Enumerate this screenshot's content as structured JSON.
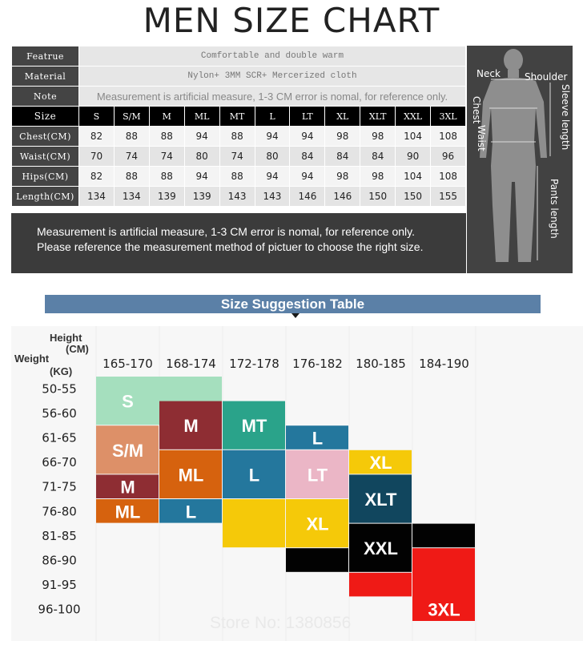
{
  "title": "MEN SIZE CHART",
  "size_table": {
    "feature_label": "Featrue",
    "feature_value": "Comfortable and double warm",
    "material_label": "Material",
    "material_value": "Nylon+ 3MM SCR+ Mercerized cloth",
    "note_label": "Note",
    "note_value": "Measurement is artificial measure, 1-3 CM error is nomal, for reference only.",
    "size_label": "Size",
    "sizes": [
      "S",
      "S/M",
      "M",
      "ML",
      "MT",
      "L",
      "LT",
      "XL",
      "XLT",
      "XXL",
      "3XL"
    ],
    "rows": [
      {
        "label": "Chest(CM)",
        "values": [
          "82",
          "88",
          "88",
          "94",
          "88",
          "94",
          "94",
          "98",
          "98",
          "104",
          "108"
        ]
      },
      {
        "label": "Waist(CM)",
        "values": [
          "70",
          "74",
          "74",
          "80",
          "74",
          "80",
          "84",
          "84",
          "84",
          "90",
          "96"
        ]
      },
      {
        "label": "Hips(CM)",
        "values": [
          "82",
          "88",
          "88",
          "94",
          "88",
          "94",
          "94",
          "98",
          "98",
          "104",
          "108"
        ]
      },
      {
        "label": "Length(CM)",
        "values": [
          "134",
          "134",
          "139",
          "139",
          "143",
          "143",
          "146",
          "146",
          "150",
          "150",
          "155"
        ]
      }
    ]
  },
  "note_box": {
    "line1": "Measurement is artificial measure, 1-3 CM error is nomal, for reference only.",
    "line2": "Please reference the measurement method of pictuer to choose the right size."
  },
  "figure_labels": {
    "neck": "Neck",
    "shoulder": "Shoulder",
    "chest": "Chest",
    "waist": "Waist",
    "sleeve": "Sleeve length",
    "pants": "Pants length"
  },
  "banner": "Size Suggestion Table",
  "watermark": "Store No: 1380856",
  "chart_data": {
    "type": "heatmap",
    "title": "Size Suggestion Table",
    "xlabel": "Height (CM)",
    "ylabel": "Weight (KG)",
    "height_label": "Height",
    "height_unit": "(CM)",
    "weight_label": "Weight",
    "weight_unit": "(KG)",
    "x": [
      "165-170",
      "168-174",
      "172-178",
      "176-182",
      "180-185",
      "184-190"
    ],
    "y": [
      "50-55",
      "56-60",
      "61-65",
      "66-70",
      "71-75",
      "76-80",
      "81-85",
      "86-90",
      "91-95",
      "96-100"
    ],
    "colors": {
      "S": "#a5dfbe",
      "S/M": "#dd9068",
      "M": "#8e2d33",
      "ML": "#d6620e",
      "MT": "#2aa38a",
      "L": "#24779d",
      "LT": "#ebb6c6",
      "XL": "#f5c909",
      "XLT": "#11465e",
      "XXL": "#020202",
      "3XL": "#ef1a16"
    },
    "blocks": [
      {
        "size": "S",
        "col": 0,
        "col_span": 2,
        "row": 0,
        "row_span": 2,
        "label": "S",
        "label_col": 0
      },
      {
        "size": "S/M",
        "col": 0,
        "col_span": 1,
        "row": 2,
        "row_span": 2,
        "label": "S/M"
      },
      {
        "size": "M",
        "col": 0,
        "col_span": 1,
        "row": 4,
        "row_span": 1,
        "label": "M"
      },
      {
        "size": "ML",
        "col": 0,
        "col_span": 1,
        "row": 5,
        "row_span": 1,
        "label": "ML"
      },
      {
        "size": "M",
        "col": 1,
        "col_span": 1,
        "row": 1,
        "row_span": 2,
        "label": "M"
      },
      {
        "size": "ML",
        "col": 1,
        "col_span": 1,
        "row": 3,
        "row_span": 2,
        "label": "ML"
      },
      {
        "size": "L",
        "col": 1,
        "col_span": 1,
        "row": 5,
        "row_span": 1,
        "label": "L"
      },
      {
        "size": "MT",
        "col": 2,
        "col_span": 1,
        "row": 1,
        "row_span": 2,
        "label": "MT"
      },
      {
        "size": "L",
        "col": 2,
        "col_span": 1,
        "row": 3,
        "row_span": 2,
        "label": "L"
      },
      {
        "size": "XL",
        "col": 2,
        "col_span": 1,
        "row": 5,
        "row_span": 2,
        "label": ""
      },
      {
        "size": "L",
        "col": 3,
        "col_span": 1,
        "row": 2,
        "row_span": 1,
        "label": "L"
      },
      {
        "size": "LT",
        "col": 3,
        "col_span": 1,
        "row": 3,
        "row_span": 2,
        "label": "LT"
      },
      {
        "size": "XL",
        "col": 3,
        "col_span": 1,
        "row": 5,
        "row_span": 2,
        "label": "XL"
      },
      {
        "size": "XXL",
        "col": 3,
        "col_span": 1,
        "row": 7,
        "row_span": 1,
        "label": ""
      },
      {
        "size": "XL",
        "col": 4,
        "col_span": 1,
        "row": 3,
        "row_span": 1,
        "label": "XL"
      },
      {
        "size": "XLT",
        "col": 4,
        "col_span": 1,
        "row": 4,
        "row_span": 2,
        "label": "XLT"
      },
      {
        "size": "XXL",
        "col": 4,
        "col_span": 1,
        "row": 6,
        "row_span": 2,
        "label": "XXL"
      },
      {
        "size": "3XL",
        "col": 4,
        "col_span": 1,
        "row": 8,
        "row_span": 1,
        "label": ""
      },
      {
        "size": "XXL",
        "col": 5,
        "col_span": 1,
        "row": 6,
        "row_span": 1,
        "label": ""
      },
      {
        "size": "3XL",
        "col": 5,
        "col_span": 1,
        "row": 7,
        "row_span": 3,
        "label": "3XL",
        "label_row": 9
      }
    ]
  }
}
